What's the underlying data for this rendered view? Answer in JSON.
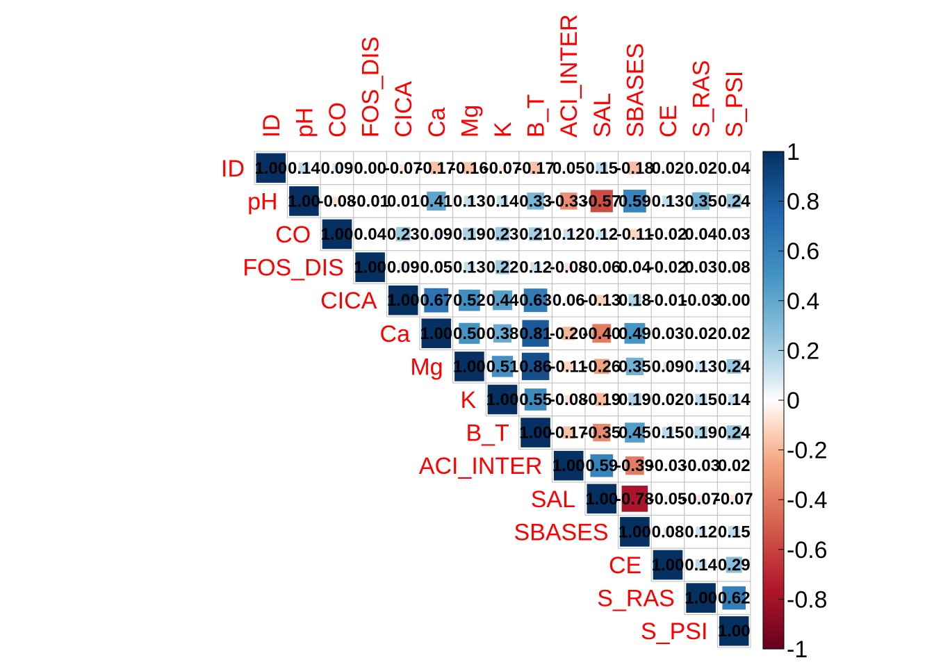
{
  "chart_data": {
    "type": "heatmap",
    "layout": "upper-triangle correlation matrix",
    "variables": [
      "ID",
      "pH",
      "CO",
      "FOS_DIS",
      "CICA",
      "Ca",
      "Mg",
      "K",
      "B_T",
      "ACI_INTER",
      "SAL",
      "SBASES",
      "CE",
      "S_RAS",
      "S_PSI"
    ],
    "matrix": [
      [
        1.0,
        0.14,
        0.09,
        0.0,
        -0.07,
        -0.17,
        -0.16,
        -0.07,
        -0.17,
        0.05,
        0.15,
        -0.18,
        0.02,
        0.02,
        0.04
      ],
      [
        null,
        1.0,
        -0.08,
        -0.01,
        0.01,
        0.41,
        0.13,
        0.14,
        0.33,
        -0.33,
        -0.57,
        0.59,
        0.13,
        0.35,
        0.24
      ],
      [
        null,
        null,
        1.0,
        0.04,
        0.23,
        0.09,
        0.19,
        0.23,
        0.21,
        0.12,
        0.12,
        -0.11,
        -0.02,
        0.04,
        0.03
      ],
      [
        null,
        null,
        null,
        1.0,
        0.09,
        0.05,
        0.13,
        0.22,
        0.12,
        -0.08,
        -0.06,
        0.04,
        -0.02,
        0.03,
        0.08
      ],
      [
        null,
        null,
        null,
        null,
        1.0,
        0.67,
        0.52,
        0.44,
        0.63,
        0.06,
        -0.13,
        0.18,
        -0.01,
        -0.03,
        0.0
      ],
      [
        null,
        null,
        null,
        null,
        null,
        1.0,
        0.5,
        0.38,
        0.81,
        -0.2,
        -0.4,
        0.49,
        0.03,
        0.02,
        0.02
      ],
      [
        null,
        null,
        null,
        null,
        null,
        null,
        1.0,
        0.51,
        0.86,
        -0.11,
        -0.26,
        0.35,
        0.09,
        0.13,
        0.24
      ],
      [
        null,
        null,
        null,
        null,
        null,
        null,
        null,
        1.0,
        0.55,
        -0.08,
        -0.19,
        0.19,
        0.02,
        0.15,
        0.14
      ],
      [
        null,
        null,
        null,
        null,
        null,
        null,
        null,
        null,
        1.0,
        -0.17,
        -0.35,
        0.45,
        0.15,
        0.19,
        0.24
      ],
      [
        null,
        null,
        null,
        null,
        null,
        null,
        null,
        null,
        null,
        1.0,
        0.59,
        -0.39,
        -0.03,
        -0.03,
        0.02
      ],
      [
        null,
        null,
        null,
        null,
        null,
        null,
        null,
        null,
        null,
        null,
        1.0,
        -0.78,
        -0.05,
        -0.07,
        -0.07
      ],
      [
        null,
        null,
        null,
        null,
        null,
        null,
        null,
        null,
        null,
        null,
        null,
        1.0,
        0.08,
        0.12,
        0.15
      ],
      [
        null,
        null,
        null,
        null,
        null,
        null,
        null,
        null,
        null,
        null,
        null,
        null,
        1.0,
        0.14,
        0.29
      ],
      [
        null,
        null,
        null,
        null,
        null,
        null,
        null,
        null,
        null,
        null,
        null,
        null,
        null,
        1.0,
        0.62
      ],
      [
        null,
        null,
        null,
        null,
        null,
        null,
        null,
        null,
        null,
        null,
        null,
        null,
        null,
        null,
        1.0
      ]
    ],
    "value_format": "2 decimals",
    "color_scale": {
      "range": [
        -1,
        1
      ],
      "ticks": [
        "1",
        "0.8",
        "0.6",
        "0.4",
        "0.2",
        "0",
        "-0.2",
        "-0.4",
        "-0.6",
        "-0.8",
        "-1"
      ],
      "stops": [
        {
          "v": -1.0,
          "color": "#67001F"
        },
        {
          "v": -0.75,
          "color": "#B2182B"
        },
        {
          "v": -0.5,
          "color": "#D6604D"
        },
        {
          "v": -0.25,
          "color": "#F4A582"
        },
        {
          "v": -0.1,
          "color": "#FDDBC7"
        },
        {
          "v": 0.0,
          "color": "#FFFFFF"
        },
        {
          "v": 0.1,
          "color": "#D1E5F0"
        },
        {
          "v": 0.25,
          "color": "#92C5DE"
        },
        {
          "v": 0.5,
          "color": "#4393C3"
        },
        {
          "v": 0.75,
          "color": "#2166AC"
        },
        {
          "v": 1.0,
          "color": "#053061"
        }
      ]
    },
    "label_color": "#FF0000",
    "grid_color": "#BEBEBE",
    "legend_placement": "right"
  }
}
